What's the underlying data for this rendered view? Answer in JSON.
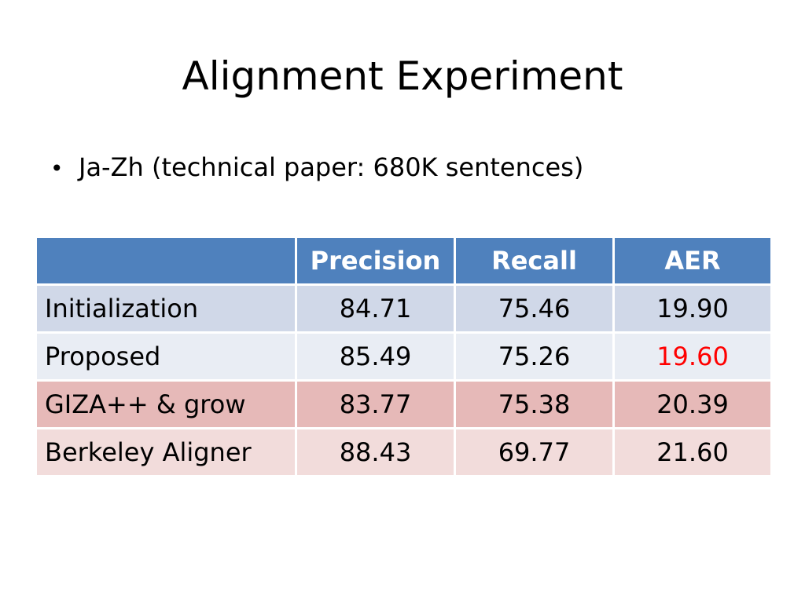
{
  "slide": {
    "title": "Alignment Experiment",
    "bullet": "Ja-Zh (technical paper: 680K sentences)"
  },
  "table": {
    "headers": [
      "",
      "Precision",
      "Recall",
      "AER"
    ],
    "rows": [
      {
        "label": "Initialization",
        "values": [
          "84.71",
          "75.46",
          "19.90"
        ]
      },
      {
        "label": "Proposed",
        "values": [
          "85.49",
          "75.26",
          "19.60"
        ]
      },
      {
        "label": "GIZA++ & grow",
        "values": [
          "83.77",
          "75.38",
          "20.39"
        ]
      },
      {
        "label": "Berkeley Aligner",
        "values": [
          "88.43",
          "69.77",
          "21.60"
        ]
      }
    ]
  },
  "colors": {
    "header_bg": "#4f81bd",
    "header_text": "#ffffff",
    "row_blue_dark": "#d0d8e8",
    "row_blue_light": "#e9edf4",
    "row_red_dark": "#e6b9b8",
    "row_red_light": "#f2dcdb",
    "highlight_text": "#ff0000"
  }
}
